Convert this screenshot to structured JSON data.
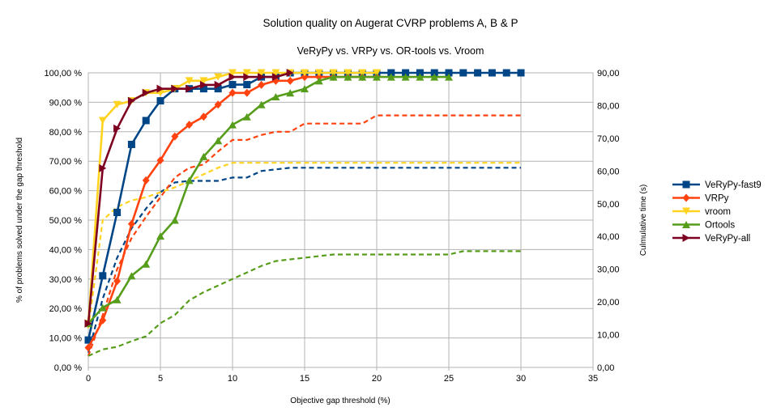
{
  "chart_data": {
    "type": "line",
    "title": "Solution quality on Augerat CVRP problems A, B & P",
    "subtitle": "VeRyPy vs. VRPy vs. OR-tools vs. Vroom",
    "xlabel": "Objective gap threshold (%)",
    "ylabel": "% of problems solved under the gap threshold",
    "y2label": "Culmulative time (s)",
    "xlim": [
      0,
      35
    ],
    "ylim": [
      0,
      100
    ],
    "y2lim": [
      0,
      90
    ],
    "x_ticks": [
      "0",
      "5",
      "10",
      "15",
      "20",
      "25",
      "30",
      "35"
    ],
    "y_ticks": [
      "0,00 %",
      "10,00 %",
      "20,00 %",
      "30,00 %",
      "40,00 %",
      "50,00 %",
      "60,00 %",
      "70,00 %",
      "80,00 %",
      "90,00 %",
      "100,00 %"
    ],
    "y2_ticks": [
      "0,00",
      "10,00",
      "20,00",
      "30,00",
      "40,00",
      "50,00",
      "60,00",
      "70,00",
      "80,00",
      "90,00"
    ],
    "grid": true,
    "legend_position": "right",
    "series": [
      {
        "name": "VeRyPy-fast9",
        "color": "#004586",
        "marker": "square",
        "x": [
          0,
          1,
          2,
          3,
          4,
          5,
          6,
          7,
          8,
          9,
          10,
          11,
          12,
          13,
          14,
          15,
          16,
          17,
          18,
          19,
          20,
          21,
          22,
          23,
          24,
          25,
          26,
          27,
          28,
          29,
          30
        ],
        "y": [
          9.3,
          31.1,
          52.6,
          75.7,
          83.8,
          90.5,
          94.6,
          94.6,
          94.6,
          94.6,
          96,
          96,
          98.6,
          98.6,
          100,
          100,
          100,
          100,
          100,
          100,
          100,
          100,
          100,
          100,
          100,
          100,
          100,
          100,
          100,
          100,
          100
        ]
      },
      {
        "name": "VRPy",
        "color": "#ff420e",
        "marker": "diamond",
        "x": [
          0,
          1,
          2,
          3,
          4,
          5,
          6,
          7,
          8,
          9,
          10,
          11,
          12,
          13,
          14,
          15,
          16,
          17,
          18,
          19,
          20
        ],
        "y": [
          6.7,
          16,
          29.3,
          48.7,
          63.5,
          70.3,
          78.4,
          82.4,
          85.1,
          89.2,
          93.2,
          93.2,
          95.9,
          97.3,
          97.3,
          98.6,
          98.6,
          98.6,
          98.6,
          98.6,
          98.6
        ]
      },
      {
        "name": "vroom",
        "color": "#ffd320",
        "marker": "triangle-down",
        "x": [
          0,
          1,
          2,
          3,
          4,
          5,
          6,
          7,
          8,
          9,
          10,
          11,
          12,
          13,
          14,
          15,
          16,
          17,
          18,
          19,
          20
        ],
        "y": [
          14.9,
          83.8,
          89.2,
          90.5,
          93.2,
          93.2,
          94.6,
          97.3,
          97.3,
          98.6,
          100,
          100,
          100,
          100,
          100,
          100,
          100,
          100,
          100,
          100,
          100
        ]
      },
      {
        "name": "Ortools",
        "color": "#579d1c",
        "marker": "triangle-up",
        "x": [
          0,
          1,
          2,
          3,
          4,
          5,
          6,
          7,
          8,
          9,
          10,
          11,
          12,
          13,
          14,
          15,
          16,
          17,
          18,
          19,
          20,
          21,
          22,
          23,
          24,
          25
        ],
        "y": [
          14.9,
          20.3,
          23,
          31.1,
          35.1,
          44.6,
          50,
          63.5,
          71.6,
          77,
          82.4,
          85.1,
          89.2,
          91.9,
          93.2,
          94.6,
          97.3,
          98.6,
          98.6,
          98.6,
          98.6,
          98.6,
          98.6,
          98.6,
          98.6,
          98.6
        ]
      },
      {
        "name": "VeRyPy-all",
        "color": "#7e0021",
        "marker": "triangle-right",
        "x": [
          0,
          1,
          2,
          3,
          4,
          5,
          6,
          7,
          8,
          9,
          10,
          11,
          12,
          13,
          14
        ],
        "y": [
          14.9,
          67.6,
          81.1,
          90.5,
          93.2,
          94.6,
          94.6,
          94.6,
          95.9,
          95.9,
          98.6,
          98.6,
          98.6,
          98.6,
          100
        ]
      }
    ],
    "time_series": [
      {
        "name": "VeRyPy-fast9 time",
        "color": "#004586",
        "x": [
          0,
          1,
          2,
          3,
          4,
          5,
          6,
          7,
          8,
          9,
          10,
          11,
          12,
          13,
          14,
          15,
          16,
          17,
          18,
          19,
          20,
          21,
          22,
          23,
          24,
          25,
          26,
          27,
          28,
          29,
          30
        ],
        "y": [
          4.5,
          21,
          33.5,
          42.5,
          48.5,
          53.5,
          56.5,
          57,
          57,
          57,
          58,
          58,
          60,
          60.5,
          61,
          61,
          61,
          61,
          61,
          61,
          61,
          61,
          61,
          61,
          61,
          61,
          61,
          61,
          61,
          61,
          61
        ]
      },
      {
        "name": "VRPy time",
        "color": "#ff420e",
        "x": [
          0,
          1,
          2,
          3,
          4,
          5,
          6,
          7,
          8,
          9,
          10,
          11,
          12,
          13,
          14,
          15,
          16,
          17,
          18,
          19,
          20,
          21,
          22,
          23,
          24,
          25,
          26,
          27,
          28,
          29,
          30
        ],
        "y": [
          3.5,
          16,
          30,
          39.5,
          46,
          52,
          58,
          61,
          62,
          66,
          69.5,
          69.5,
          71,
          72,
          72,
          74.5,
          74.5,
          74.5,
          74.5,
          74.5,
          77,
          77,
          77,
          77,
          77,
          77,
          77,
          77,
          77,
          77,
          77
        ]
      },
      {
        "name": "vroom time",
        "color": "#ffd320",
        "x": [
          0,
          1,
          2,
          3,
          4,
          5,
          6,
          7,
          8,
          9,
          10,
          11,
          12,
          13,
          14,
          15,
          16,
          17,
          18,
          19,
          20,
          21,
          22,
          23,
          24,
          25,
          26,
          27,
          28,
          29,
          30
        ],
        "y": [
          12,
          45,
          49,
          51,
          52,
          53.5,
          55,
          57,
          59,
          61,
          62.5,
          62.5,
          62.5,
          62.5,
          62.5,
          62.5,
          62.5,
          62.5,
          62.5,
          62.5,
          62.5,
          62.5,
          62.5,
          62.5,
          62.5,
          62.5,
          62.5,
          62.5,
          62.5,
          62.5,
          62.5
        ]
      },
      {
        "name": "Ortools time",
        "color": "#579d1c",
        "x": [
          0,
          1,
          2,
          3,
          4,
          5,
          6,
          7,
          8,
          9,
          10,
          11,
          12,
          13,
          14,
          15,
          16,
          17,
          18,
          19,
          20,
          21,
          22,
          23,
          24,
          25,
          26,
          27,
          28,
          29,
          30
        ],
        "y": [
          3.5,
          5.5,
          6.3,
          8,
          9.5,
          13.5,
          16,
          20.5,
          23,
          25,
          27,
          29,
          31,
          32.5,
          33,
          33.5,
          34,
          34.5,
          34.5,
          34.5,
          34.5,
          34.5,
          34.5,
          34.5,
          34.5,
          34.5,
          35.5,
          35.5,
          35.5,
          35.5,
          35.5
        ]
      }
    ]
  }
}
